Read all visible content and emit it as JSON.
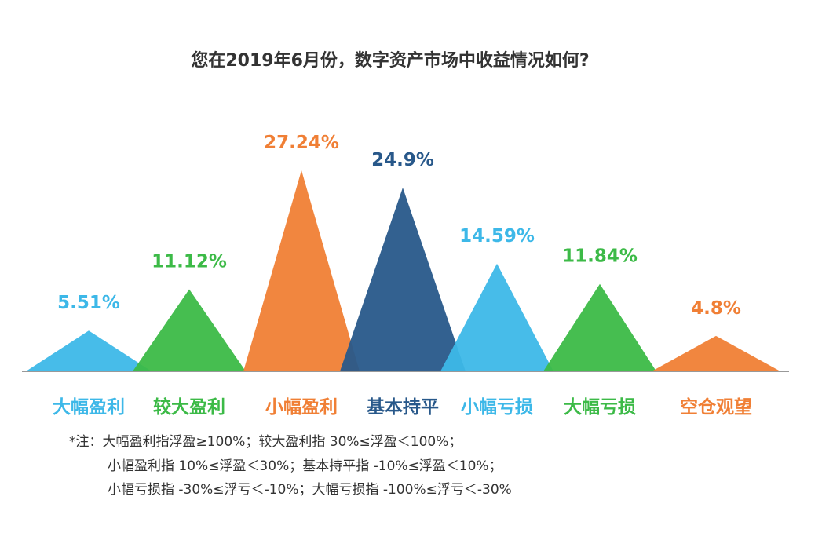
{
  "chart_data": {
    "type": "area",
    "title": "您在2019年6月份，数字资产市场中收益情况如何?",
    "categories": [
      "大幅盈利",
      "较大盈利",
      "小幅盈利",
      "基本持平",
      "小幅亏损",
      "大幅亏损",
      "空仓观望"
    ],
    "values": [
      5.51,
      11.12,
      27.24,
      24.9,
      14.59,
      11.84,
      4.8
    ],
    "value_labels": [
      "5.51%",
      "11.12%",
      "27.24%",
      "24.9%",
      "14.59%",
      "11.84%",
      "4.8%"
    ],
    "unit": "%",
    "ylim": [
      0,
      27.24
    ],
    "grid": false,
    "legend": "none"
  },
  "colors": [
    "#3db8e8",
    "#3cba47",
    "#f07f35",
    "#28588a",
    "#3db8e8",
    "#3cba47",
    "#f07f35"
  ],
  "baseline_color": "#999999",
  "notes": [
    "*注：大幅盈利指浮盈≥100%；较大盈利指 30%≤浮盈＜100%；",
    "小幅盈利指 10%≤浮盈＜30%；基本持平指 -10%≤浮盈＜10%；",
    "小幅亏损指 -30%≤浮亏＜-10%；大幅亏损指 -100%≤浮亏＜-30%"
  ]
}
